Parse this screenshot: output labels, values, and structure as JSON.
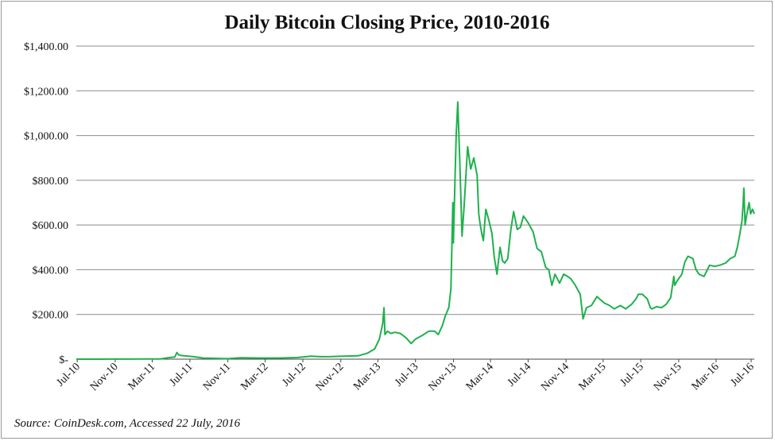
{
  "chart_data": {
    "type": "line",
    "title": "Daily Bitcoin Closing Price, 2010-2016",
    "source": "Source: CoinDesk.com, Accessed 22 July, 2016",
    "xlabel": "",
    "ylabel": "",
    "ylim": [
      0,
      1400
    ],
    "grid": true,
    "legend": "none",
    "y_ticks": [
      {
        "value": 0,
        "label": "$-"
      },
      {
        "value": 200,
        "label": "$200.00"
      },
      {
        "value": 400,
        "label": "$400.00"
      },
      {
        "value": 600,
        "label": "$600.00"
      },
      {
        "value": 800,
        "label": "$800.00"
      },
      {
        "value": 1000,
        "label": "$1,000.00"
      },
      {
        "value": 1200,
        "label": "$1,200.00"
      },
      {
        "value": 1400,
        "label": "$1,400.00"
      }
    ],
    "x_ticks": [
      "Jul-10",
      "Nov-10",
      "Mar-11",
      "Jul-11",
      "Nov-11",
      "Mar-12",
      "Jul-12",
      "Nov-12",
      "Mar-13",
      "Jul-13",
      "Nov-13",
      "Mar-14",
      "Jul-14",
      "Nov-14",
      "Mar-15",
      "Jul-15",
      "Nov-15",
      "Mar-16",
      "Jul-16"
    ],
    "xlim": [
      "2010-07-17",
      "2016-07-22"
    ],
    "colors": {
      "series": "#1fb14d",
      "grid": "#8c8c8c"
    },
    "series": [
      {
        "dates": [
          "2010-07-17",
          "2010-09-01",
          "2010-11-01",
          "2011-01-01",
          "2011-03-01",
          "2011-04-15",
          "2011-05-15",
          "2011-06-01",
          "2011-06-08",
          "2011-06-14",
          "2011-06-20",
          "2011-07-01",
          "2011-08-01",
          "2011-09-01",
          "2011-10-01",
          "2011-11-01",
          "2011-11-20",
          "2012-01-01",
          "2012-03-01",
          "2012-05-01",
          "2012-07-01",
          "2012-08-16",
          "2012-09-15",
          "2012-10-20",
          "2012-12-01",
          "2013-01-15",
          "2013-02-15",
          "2013-03-10",
          "2013-03-25",
          "2013-04-05",
          "2013-04-09",
          "2013-04-12",
          "2013-04-20",
          "2013-05-01",
          "2013-05-15",
          "2013-06-01",
          "2013-06-20",
          "2013-07-06",
          "2013-07-20",
          "2013-08-10",
          "2013-09-01",
          "2013-09-20",
          "2013-10-02",
          "2013-10-15",
          "2013-10-25",
          "2013-11-05",
          "2013-11-12",
          "2013-11-18",
          "2013-11-20",
          "2013-11-25",
          "2013-11-29",
          "2013-12-04",
          "2013-12-10",
          "2013-12-18",
          "2013-12-25",
          "2014-01-05",
          "2014-01-15",
          "2014-01-25",
          "2014-02-05",
          "2014-02-10",
          "2014-02-15",
          "2014-02-20",
          "2014-02-25",
          "2014-03-05",
          "2014-03-15",
          "2014-03-25",
          "2014-04-01",
          "2014-04-10",
          "2014-04-20",
          "2014-04-28",
          "2014-05-05",
          "2014-05-15",
          "2014-05-25",
          "2014-06-03",
          "2014-06-15",
          "2014-06-25",
          "2014-07-05",
          "2014-07-20",
          "2014-08-05",
          "2014-08-18",
          "2014-09-01",
          "2014-09-15",
          "2014-09-25",
          "2014-10-05",
          "2014-10-15",
          "2014-10-30",
          "2014-11-12",
          "2014-11-25",
          "2014-12-05",
          "2014-12-20",
          "2015-01-05",
          "2015-01-14",
          "2015-01-25",
          "2015-02-10",
          "2015-02-28",
          "2015-03-12",
          "2015-03-25",
          "2015-04-10",
          "2015-04-25",
          "2015-05-15",
          "2015-06-01",
          "2015-06-20",
          "2015-07-05",
          "2015-07-12",
          "2015-07-25",
          "2015-08-10",
          "2015-08-20",
          "2015-08-25",
          "2015-09-10",
          "2015-09-25",
          "2015-10-10",
          "2015-10-25",
          "2015-11-04",
          "2015-11-07",
          "2015-11-15",
          "2015-11-30",
          "2015-12-10",
          "2015-12-20",
          "2016-01-05",
          "2016-01-15",
          "2016-01-25",
          "2016-02-10",
          "2016-02-28",
          "2016-03-15",
          "2016-04-01",
          "2016-04-20",
          "2016-05-05",
          "2016-05-20",
          "2016-05-28",
          "2016-06-05",
          "2016-06-12",
          "2016-06-16",
          "2016-06-18",
          "2016-06-22",
          "2016-06-28",
          "2016-07-05",
          "2016-07-10",
          "2016-07-16",
          "2016-07-22"
        ],
        "values": [
          0.07,
          0.06,
          0.25,
          0.3,
          0.9,
          0.8,
          7,
          9.5,
          29.6,
          19,
          17,
          15,
          11,
          5,
          4,
          2.5,
          2.2,
          6,
          5,
          5.1,
          7,
          13.5,
          11,
          11.5,
          13.5,
          15,
          27,
          46,
          90,
          160,
          230,
          110,
          125,
          115,
          120,
          115,
          95,
          70,
          90,
          105,
          125,
          125,
          110,
          150,
          195,
          230,
          315,
          700,
          520,
          800,
          1000,
          1150,
          910,
          550,
          690,
          950,
          850,
          900,
          820,
          650,
          600,
          560,
          530,
          670,
          620,
          560,
          460,
          380,
          500,
          440,
          430,
          450,
          580,
          660,
          580,
          590,
          640,
          610,
          570,
          495,
          480,
          410,
          400,
          330,
          380,
          340,
          380,
          370,
          360,
          330,
          290,
          180,
          230,
          240,
          280,
          265,
          250,
          240,
          225,
          240,
          225,
          245,
          270,
          290,
          290,
          270,
          230,
          225,
          235,
          230,
          245,
          275,
          370,
          330,
          350,
          380,
          435,
          460,
          450,
          400,
          380,
          370,
          420,
          415,
          420,
          430,
          450,
          460,
          500,
          560,
          620,
          700,
          765,
          600,
          650,
          700,
          650,
          670,
          650
        ]
      }
    ]
  }
}
